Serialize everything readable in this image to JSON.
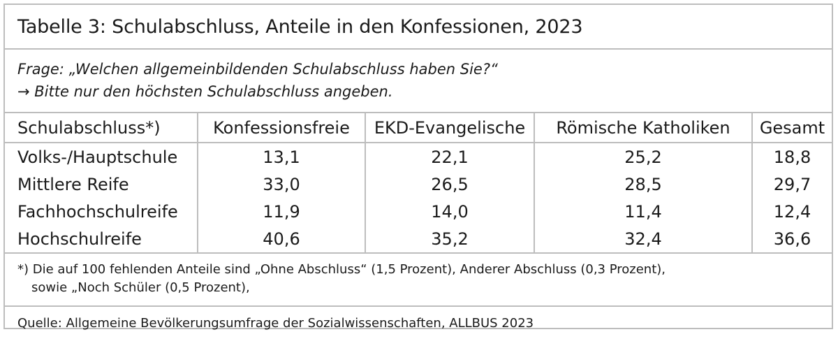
{
  "title": "Tabelle 3: Schulabschluss, Anteile in den Konfessionen, 2023",
  "question": {
    "line1": "Frage: „Welchen allgemeinbildenden Schulabschluss haben Sie?“",
    "line2": "→ Bitte nur den höchsten Schulabschluss angeben."
  },
  "table": {
    "headers": [
      "Schulabschluss*)",
      "Konfessionsfreie",
      "EKD-Evangelische",
      "Römische Katholiken",
      "Gesamt"
    ],
    "rows": [
      {
        "label": "Volks-/Hauptschule",
        "values": [
          "13,1",
          "22,1",
          "25,2",
          "18,8"
        ]
      },
      {
        "label": "Mittlere Reife",
        "values": [
          "33,0",
          "26,5",
          "28,5",
          "29,7"
        ]
      },
      {
        "label": "Fachhochschulreife",
        "values": [
          "11,9",
          "14,0",
          "11,4",
          "12,4"
        ]
      },
      {
        "label": "Hochschulreife",
        "values": [
          "40,6",
          "35,2",
          "32,4",
          "36,6"
        ]
      }
    ]
  },
  "footnote": {
    "line1": "*) Die auf 100 fehlenden Anteile sind „Ohne Abschluss“ (1,5 Prozent), Anderer Abschluss (0,3 Prozent),",
    "line2": "sowie „Noch Schüler (0,5 Prozent),"
  },
  "source": "Quelle: Allgemeine Bevölkerungsumfrage der Sozialwissenschaften, ALLBUS 2023",
  "colors": {
    "border": "#bdbdbd",
    "text": "#1a1a1a"
  }
}
